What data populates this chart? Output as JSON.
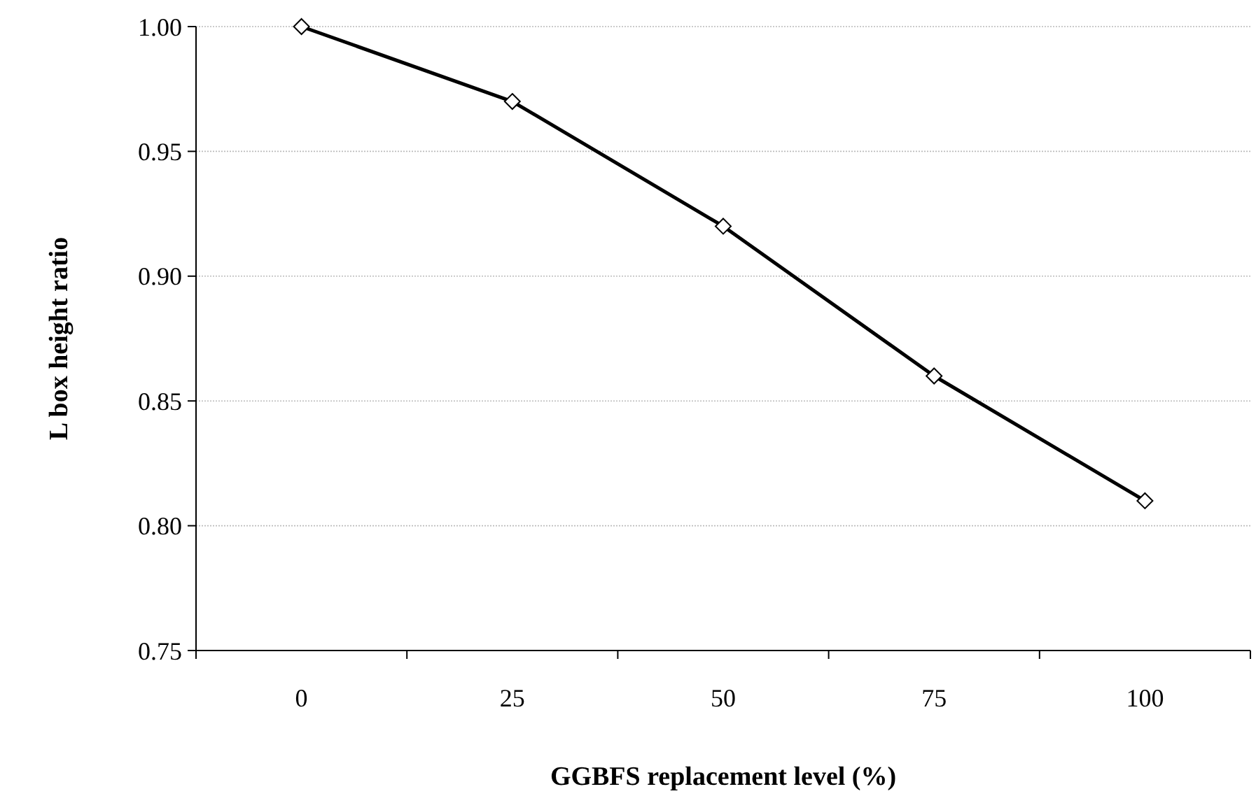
{
  "chart_data": {
    "type": "line",
    "xlabel": "GGBFS replacement level (%)",
    "ylabel": "L box height ratio",
    "categories": [
      "0",
      "25",
      "50",
      "75",
      "100"
    ],
    "series": [
      {
        "color": "#000000",
        "values": [
          1.0,
          0.97,
          0.92,
          0.86,
          0.81
        ]
      }
    ],
    "ylim": [
      0.75,
      1.0
    ],
    "yticks": [
      {
        "value": 0.75,
        "label": "0.75"
      },
      {
        "value": 0.8,
        "label": "0.80"
      },
      {
        "value": 0.85,
        "label": "0.85"
      },
      {
        "value": 0.9,
        "label": "0.90"
      },
      {
        "value": 0.95,
        "label": "0.95"
      },
      {
        "value": 1.0,
        "label": "1.00"
      }
    ],
    "grid": "y",
    "marker": "diamond",
    "line_style": "solid"
  }
}
